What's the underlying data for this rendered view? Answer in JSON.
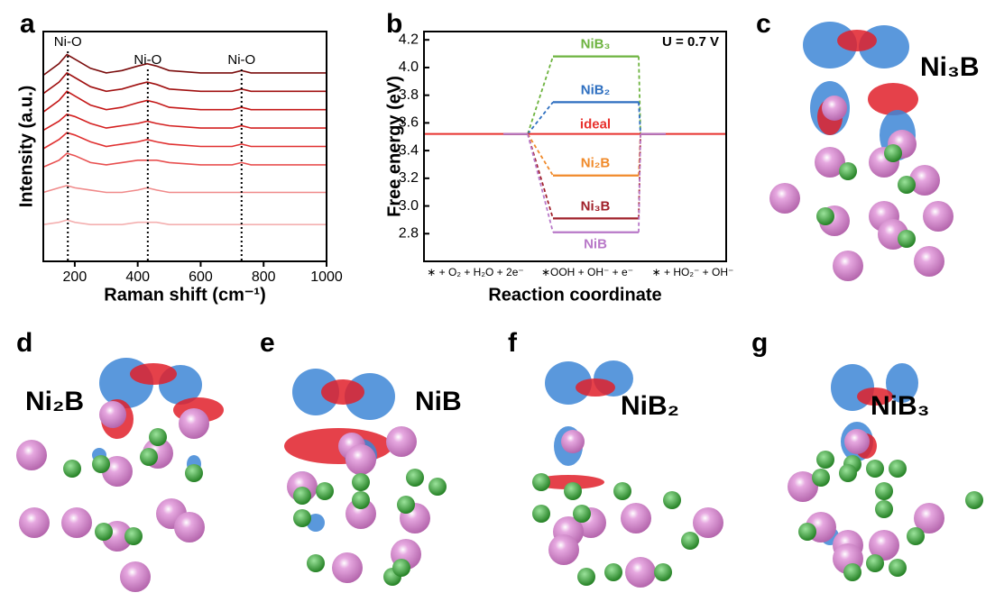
{
  "chart_data": [
    {
      "type": "line",
      "xlabel": "Raman shift (cm⁻¹)",
      "ylabel": "Intensity (a.u.)",
      "x": [
        100,
        150,
        175,
        200,
        250,
        300,
        350,
        400,
        430,
        460,
        500,
        600,
        700,
        730,
        760,
        800,
        900,
        1000
      ],
      "xlim": [
        100,
        1000
      ],
      "xticks": [
        200,
        400,
        600,
        800,
        1000
      ],
      "ylim": [
        0,
        10
      ],
      "series": [
        {
          "color": "#7a0c0c",
          "values": [
            8.1,
            8.6,
            9.0,
            8.8,
            8.4,
            8.2,
            8.3,
            8.5,
            8.6,
            8.5,
            8.3,
            8.2,
            8.2,
            8.3,
            8.2,
            8.2,
            8.2,
            8.2
          ]
        },
        {
          "color": "#a01010",
          "values": [
            7.3,
            7.8,
            8.2,
            8.0,
            7.6,
            7.4,
            7.5,
            7.7,
            7.8,
            7.7,
            7.5,
            7.4,
            7.4,
            7.5,
            7.4,
            7.4,
            7.4,
            7.4
          ]
        },
        {
          "color": "#c41818",
          "values": [
            6.5,
            7.0,
            7.4,
            7.2,
            6.8,
            6.6,
            6.7,
            6.9,
            7.0,
            6.9,
            6.7,
            6.6,
            6.6,
            6.7,
            6.6,
            6.6,
            6.6,
            6.6
          ]
        },
        {
          "color": "#d42020",
          "values": [
            5.7,
            6.1,
            6.4,
            6.3,
            6.0,
            5.8,
            5.9,
            6.0,
            6.1,
            6.0,
            5.9,
            5.8,
            5.8,
            5.9,
            5.8,
            5.8,
            5.8,
            5.8
          ]
        },
        {
          "color": "#e03030",
          "values": [
            4.9,
            5.3,
            5.6,
            5.5,
            5.2,
            5.0,
            5.1,
            5.2,
            5.3,
            5.2,
            5.1,
            5.0,
            5.0,
            5.1,
            5.0,
            5.0,
            5.0,
            5.0
          ]
        },
        {
          "color": "#e85050",
          "values": [
            4.1,
            4.4,
            4.7,
            4.6,
            4.3,
            4.2,
            4.3,
            4.4,
            4.4,
            4.4,
            4.3,
            4.2,
            4.2,
            4.3,
            4.2,
            4.2,
            4.2,
            4.2
          ]
        },
        {
          "color": "#f08a8a",
          "values": [
            3.0,
            3.2,
            3.3,
            3.2,
            3.1,
            3.0,
            3.0,
            3.1,
            3.2,
            3.1,
            3.0,
            3.0,
            3.0,
            3.0,
            3.0,
            3.0,
            3.0,
            3.0
          ]
        },
        {
          "color": "#f4b0b0",
          "values": [
            1.6,
            1.7,
            1.8,
            1.7,
            1.6,
            1.6,
            1.6,
            1.7,
            1.7,
            1.7,
            1.6,
            1.6,
            1.6,
            1.6,
            1.6,
            1.6,
            1.6,
            1.6
          ]
        }
      ],
      "markers": [
        {
          "x": 178,
          "label": "Ni-O"
        },
        {
          "x": 432,
          "label": "Ni-O"
        },
        {
          "x": 730,
          "label": "Ni-O"
        }
      ]
    },
    {
      "type": "step",
      "xlabel": "Reaction coordinate",
      "ylabel": "Free energy (eV)",
      "annotation": "U = 0.7 V",
      "categories": [
        "∗ + O₂ + H₂O + 2e⁻",
        "∗OOH + OH⁻ + e⁻",
        "∗ + HO₂⁻ + OH⁻"
      ],
      "ylim": [
        2.6,
        4.26
      ],
      "yticks": [
        2.8,
        {
          "value": 3,
          "label": "3.0"
        },
        3.2,
        3.4,
        3.6,
        3.8,
        {
          "value": 4,
          "label": "4.0"
        },
        4.2
      ],
      "series": [
        {
          "name": "NiB₃",
          "color": "#6db33f",
          "values": [
            3.52,
            4.08,
            3.52
          ]
        },
        {
          "name": "NiB₂",
          "color": "#2e6fc0",
          "values": [
            3.52,
            3.75,
            3.52
          ]
        },
        {
          "name": "ideal",
          "color": "#e8312d",
          "values": [
            3.52,
            3.52,
            3.52
          ]
        },
        {
          "name": "Ni₂B",
          "color": "#f08a2a",
          "values": [
            3.52,
            3.22,
            3.52
          ]
        },
        {
          "name": "Ni₃B",
          "color": "#a0202a",
          "values": [
            3.52,
            2.91,
            3.52
          ]
        },
        {
          "name": "NiB",
          "color": "#b878c8",
          "values": [
            3.52,
            2.81,
            3.52
          ]
        }
      ]
    }
  ],
  "panels": {
    "letters": [
      "a",
      "b",
      "c",
      "d",
      "e",
      "f",
      "g"
    ],
    "structures": [
      {
        "label": "Ni₃B"
      },
      {
        "label": "Ni₂B"
      },
      {
        "label": "NiB"
      },
      {
        "label": "NiB₂"
      },
      {
        "label": "NiB₃"
      }
    ]
  }
}
